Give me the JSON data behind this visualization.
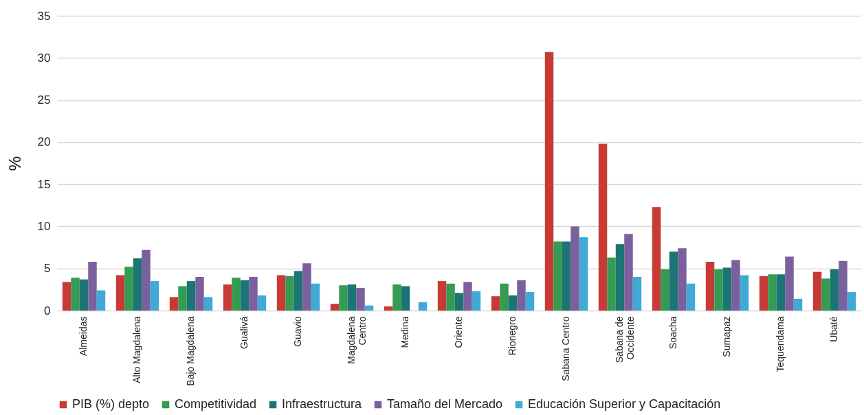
{
  "chart_data": {
    "type": "bar",
    "ylabel": "%",
    "categories": [
      "Almeidas",
      "Alto Magdalena",
      "Bajo Magdalena",
      "Gualivá",
      "Guavio",
      "Magdalena\nCentro",
      "Medina",
      "Oriente",
      "Rionegro",
      "Sabana Centro",
      "Sabana de\nOccidente",
      "Soacha",
      "Sumapaz",
      "Tequendama",
      "Ubaté"
    ],
    "series": [
      {
        "name": "PIB (%) depto",
        "color": "#c83a36",
        "values": [
          3.4,
          4.2,
          1.6,
          3.1,
          4.2,
          0.8,
          0.5,
          3.5,
          1.7,
          30.7,
          19.8,
          12.3,
          5.8,
          4.1,
          4.6
        ]
      },
      {
        "name": "Competitividad",
        "color": "#359a52",
        "values": [
          3.9,
          5.2,
          2.9,
          3.9,
          4.1,
          3.0,
          3.1,
          3.2,
          3.2,
          8.2,
          6.3,
          4.9,
          4.9,
          4.3,
          3.8
        ]
      },
      {
        "name": "Infraestructura",
        "color": "#1c7574",
        "values": [
          3.7,
          6.2,
          3.5,
          3.6,
          4.7,
          3.1,
          2.9,
          2.1,
          1.8,
          8.2,
          7.9,
          7.0,
          5.1,
          4.3,
          4.9
        ]
      },
      {
        "name": "Tamaño del Mercado",
        "color": "#7a609c",
        "values": [
          5.8,
          7.2,
          4.0,
          4.0,
          5.6,
          2.7,
          null,
          3.4,
          3.6,
          10.0,
          9.1,
          7.4,
          6.0,
          6.4,
          5.9
        ]
      },
      {
        "name": "Educación Superior y Capacitación",
        "color": "#40a9d6",
        "values": [
          2.4,
          3.5,
          1.6,
          1.8,
          3.2,
          0.6,
          1.0,
          2.3,
          2.2,
          8.7,
          4.0,
          3.2,
          4.2,
          1.4,
          2.2
        ]
      }
    ],
    "ylim": [
      0,
      35
    ],
    "yticks": [
      0,
      5,
      10,
      15,
      20,
      25,
      30,
      35
    ],
    "grid": "y",
    "legend": "bottom"
  }
}
